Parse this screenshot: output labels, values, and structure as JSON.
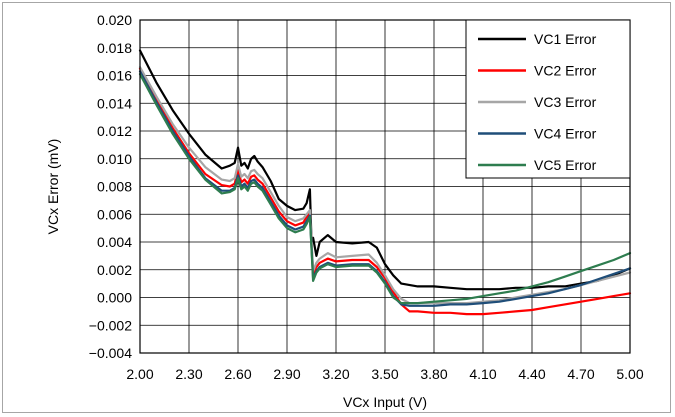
{
  "chart_data": {
    "type": "line",
    "xlabel": "VCx Input (V)",
    "ylabel": "VCx Error (mV)",
    "xlim": [
      2.0,
      5.0
    ],
    "ylim": [
      -0.004,
      0.02
    ],
    "x_ticks": [
      "2.00",
      "2.30",
      "2.60",
      "2.90",
      "3.20",
      "3.50",
      "3.80",
      "4.10",
      "4.40",
      "4.70",
      "5.00"
    ],
    "y_ticks": [
      "0.020",
      "0.018",
      "0.016",
      "0.014",
      "0.012",
      "0.010",
      "0.008",
      "0.006",
      "0.004",
      "0.002",
      "0.000",
      "−0.002",
      "−0.004"
    ],
    "grid": true,
    "legend_position": "top-right",
    "series": [
      {
        "name": "VC1 Error",
        "color": "#000000",
        "x": [
          2.0,
          2.1,
          2.2,
          2.3,
          2.4,
          2.5,
          2.55,
          2.58,
          2.6,
          2.62,
          2.64,
          2.66,
          2.68,
          2.7,
          2.72,
          2.75,
          2.8,
          2.85,
          2.9,
          2.95,
          3.0,
          3.02,
          3.04,
          3.05,
          3.06,
          3.08,
          3.1,
          3.15,
          3.2,
          3.3,
          3.4,
          3.45,
          3.5,
          3.55,
          3.6,
          3.7,
          3.8,
          3.9,
          4.0,
          4.1,
          4.2,
          4.3,
          4.4,
          4.5,
          4.6,
          4.7,
          4.8,
          4.9,
          5.0
        ],
        "values": [
          0.0178,
          0.0155,
          0.0135,
          0.0118,
          0.0103,
          0.0093,
          0.0095,
          0.0097,
          0.0108,
          0.0095,
          0.0097,
          0.0093,
          0.01,
          0.0102,
          0.0098,
          0.0094,
          0.0084,
          0.0071,
          0.0066,
          0.0063,
          0.0064,
          0.0068,
          0.0078,
          0.004,
          0.0043,
          0.003,
          0.004,
          0.0045,
          0.004,
          0.0039,
          0.004,
          0.0036,
          0.0024,
          0.0016,
          0.001,
          0.0008,
          0.0008,
          0.0007,
          0.0006,
          0.0006,
          0.0006,
          0.0007,
          0.0007,
          0.0008,
          0.0008,
          0.001,
          0.0012,
          0.0016,
          0.0021
        ]
      },
      {
        "name": "VC2 Error",
        "color": "#ff0000",
        "x": [
          2.0,
          2.1,
          2.2,
          2.3,
          2.4,
          2.5,
          2.55,
          2.58,
          2.6,
          2.62,
          2.64,
          2.66,
          2.68,
          2.7,
          2.72,
          2.75,
          2.8,
          2.85,
          2.9,
          2.95,
          3.0,
          3.02,
          3.04,
          3.06,
          3.08,
          3.1,
          3.15,
          3.2,
          3.3,
          3.4,
          3.45,
          3.5,
          3.55,
          3.6,
          3.65,
          3.7,
          3.8,
          3.9,
          4.0,
          4.1,
          4.2,
          4.3,
          4.4,
          4.5,
          4.6,
          4.7,
          4.8,
          4.9,
          5.0
        ],
        "values": [
          0.0165,
          0.0143,
          0.0122,
          0.0104,
          0.0089,
          0.0081,
          0.008,
          0.0082,
          0.0092,
          0.0083,
          0.0085,
          0.0082,
          0.0087,
          0.0088,
          0.0085,
          0.0082,
          0.0072,
          0.0062,
          0.0055,
          0.0052,
          0.0054,
          0.0058,
          0.0061,
          0.0017,
          0.0022,
          0.0025,
          0.0028,
          0.0026,
          0.0027,
          0.0027,
          0.0022,
          0.0014,
          0.0004,
          -0.0005,
          -0.001,
          -0.001,
          -0.0011,
          -0.0011,
          -0.0012,
          -0.0012,
          -0.0011,
          -0.001,
          -0.0009,
          -0.0007,
          -0.0005,
          -0.0003,
          -0.0001,
          0.0001,
          0.0003
        ]
      },
      {
        "name": "VC3 Error",
        "color": "#a6a6a6",
        "x": [
          2.0,
          2.1,
          2.2,
          2.3,
          2.4,
          2.5,
          2.55,
          2.58,
          2.6,
          2.62,
          2.64,
          2.66,
          2.68,
          2.7,
          2.72,
          2.75,
          2.8,
          2.85,
          2.9,
          2.95,
          3.0,
          3.02,
          3.04,
          3.06,
          3.08,
          3.1,
          3.15,
          3.2,
          3.3,
          3.4,
          3.45,
          3.5,
          3.55,
          3.6,
          3.65,
          3.7,
          3.8,
          3.9,
          4.0,
          4.1,
          4.2,
          4.3,
          4.4,
          4.5,
          4.6,
          4.7,
          4.8,
          4.9,
          5.0
        ],
        "values": [
          0.0166,
          0.0145,
          0.0125,
          0.0108,
          0.0094,
          0.0085,
          0.0084,
          0.0086,
          0.0096,
          0.0087,
          0.0089,
          0.0086,
          0.0091,
          0.0092,
          0.0089,
          0.0086,
          0.0076,
          0.0066,
          0.0058,
          0.0055,
          0.0057,
          0.006,
          0.0063,
          0.0019,
          0.0025,
          0.0028,
          0.0032,
          0.0029,
          0.003,
          0.0031,
          0.0025,
          0.0016,
          0.0006,
          -0.0001,
          -0.0004,
          -0.0004,
          -0.0004,
          -0.0004,
          -0.0004,
          -0.0003,
          -0.0002,
          0.0,
          0.0002,
          0.0004,
          0.0006,
          0.0009,
          0.0012,
          0.0015,
          0.0018
        ]
      },
      {
        "name": "VC4 Error",
        "color": "#1f4e79",
        "x": [
          2.0,
          2.1,
          2.2,
          2.3,
          2.4,
          2.5,
          2.55,
          2.58,
          2.6,
          2.62,
          2.64,
          2.66,
          2.68,
          2.7,
          2.72,
          2.75,
          2.8,
          2.85,
          2.9,
          2.95,
          3.0,
          3.02,
          3.04,
          3.06,
          3.08,
          3.1,
          3.15,
          3.2,
          3.3,
          3.4,
          3.45,
          3.5,
          3.55,
          3.6,
          3.65,
          3.7,
          3.8,
          3.9,
          4.0,
          4.1,
          4.2,
          4.3,
          4.4,
          4.5,
          4.6,
          4.7,
          4.8,
          4.9,
          5.0
        ],
        "values": [
          0.0163,
          0.0141,
          0.012,
          0.0102,
          0.0086,
          0.0077,
          0.0077,
          0.0079,
          0.0088,
          0.008,
          0.0082,
          0.0079,
          0.0084,
          0.0085,
          0.0082,
          0.0079,
          0.0069,
          0.0059,
          0.0052,
          0.0049,
          0.0051,
          0.0055,
          0.0059,
          0.0014,
          0.0019,
          0.0022,
          0.0025,
          0.0023,
          0.0024,
          0.0024,
          0.0019,
          0.0011,
          0.0001,
          -0.0005,
          -0.0006,
          -0.0006,
          -0.0006,
          -0.0005,
          -0.0005,
          -0.0004,
          -0.0003,
          -0.0001,
          0.0001,
          0.0003,
          0.0006,
          0.0009,
          0.0013,
          0.0017,
          0.0021
        ]
      },
      {
        "name": "VC5 Error",
        "color": "#2e7d4f",
        "x": [
          2.0,
          2.1,
          2.2,
          2.3,
          2.4,
          2.5,
          2.55,
          2.58,
          2.6,
          2.62,
          2.64,
          2.66,
          2.68,
          2.7,
          2.72,
          2.75,
          2.8,
          2.85,
          2.9,
          2.95,
          3.0,
          3.02,
          3.04,
          3.06,
          3.08,
          3.1,
          3.15,
          3.2,
          3.3,
          3.4,
          3.45,
          3.5,
          3.55,
          3.6,
          3.65,
          3.7,
          3.8,
          3.9,
          4.0,
          4.1,
          4.2,
          4.3,
          4.4,
          4.5,
          4.6,
          4.7,
          4.8,
          4.9,
          5.0
        ],
        "values": [
          0.0161,
          0.0139,
          0.0118,
          0.01,
          0.0085,
          0.0075,
          0.0076,
          0.0078,
          0.0086,
          0.0078,
          0.008,
          0.0077,
          0.0082,
          0.0083,
          0.008,
          0.0077,
          0.0067,
          0.0057,
          0.005,
          0.0047,
          0.0049,
          0.0053,
          0.0058,
          0.0012,
          0.0018,
          0.0021,
          0.0024,
          0.0022,
          0.0023,
          0.0023,
          0.0018,
          0.001,
          0.0,
          -0.0004,
          -0.0004,
          -0.0004,
          -0.0003,
          -0.0002,
          -0.0001,
          0.0001,
          0.0003,
          0.0005,
          0.0008,
          0.0011,
          0.0015,
          0.0019,
          0.0023,
          0.0027,
          0.0032
        ]
      }
    ]
  }
}
